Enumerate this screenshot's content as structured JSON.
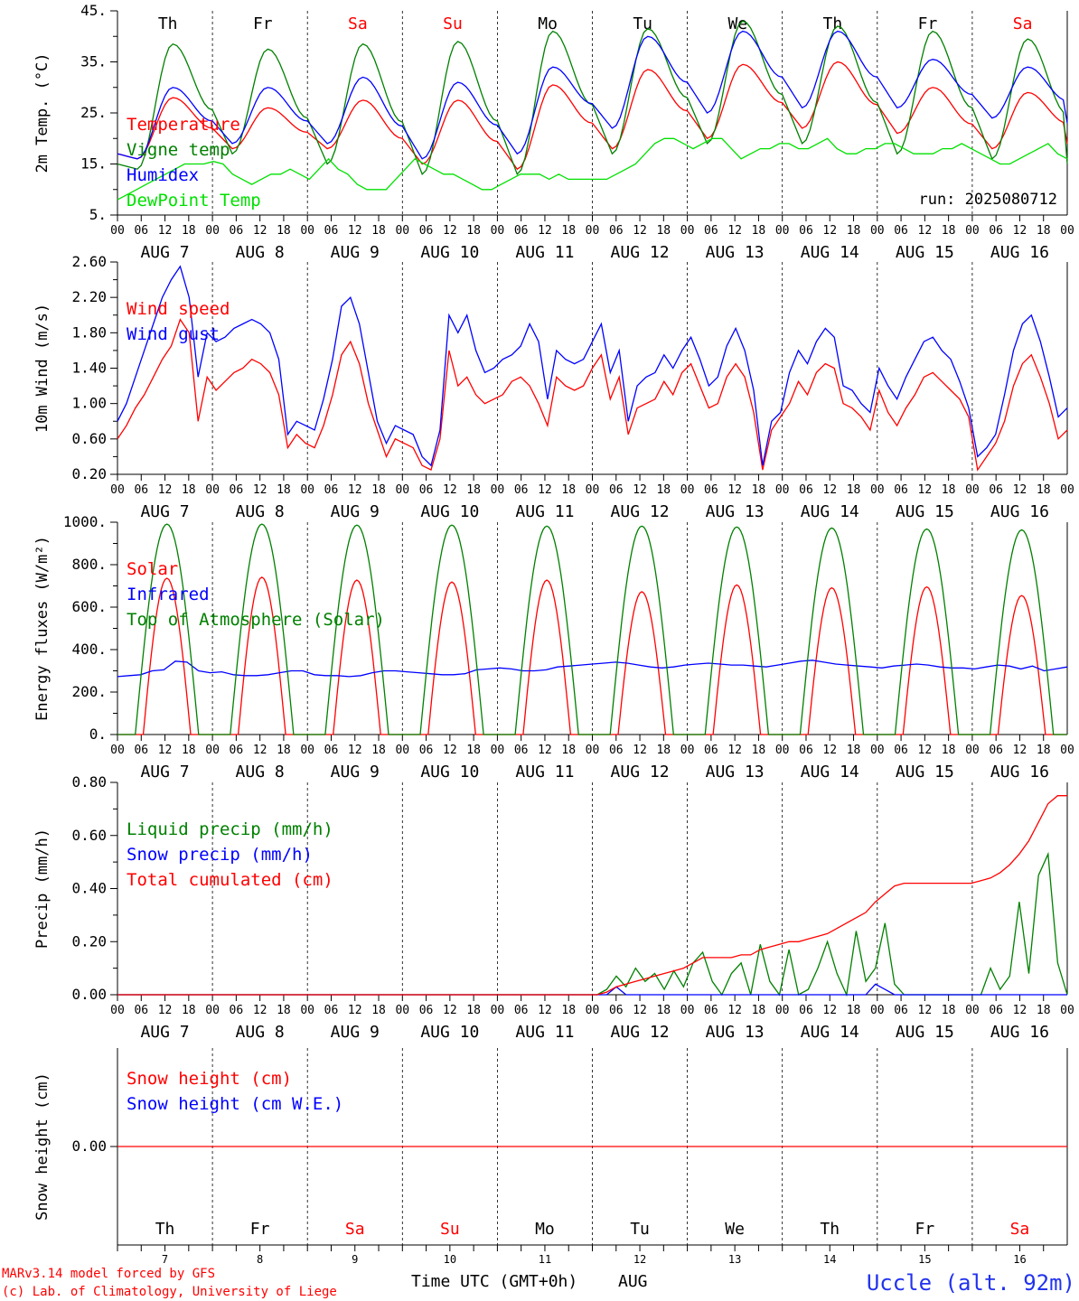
{
  "run_label": "run: 2025080712",
  "footer": {
    "model": "MARv3.14 model forced by GFS",
    "copyright": "(c) Lab. of Climatology, University of Liege",
    "time_axis": "Time UTC (GMT+0h)",
    "month": "AUG",
    "station": "Uccle (alt. 92m)"
  },
  "days": {
    "names": [
      "Th",
      "Fr",
      "Sa",
      "Su",
      "Mo",
      "Tu",
      "We",
      "Th",
      "Fr",
      "Sa"
    ],
    "weekend": [
      false,
      false,
      true,
      true,
      false,
      false,
      false,
      false,
      false,
      true
    ],
    "dates": [
      "AUG  7",
      "AUG  8",
      "AUG  9",
      "AUG 10",
      "AUG 11",
      "AUG 12",
      "AUG 13",
      "AUG 14",
      "AUG 15",
      "AUG 16"
    ],
    "numbers": [
      "7",
      "8",
      "9",
      "10",
      "11",
      "12",
      "13",
      "14",
      "15",
      "16"
    ],
    "hour_ticks": [
      "00",
      "06",
      "12",
      "18"
    ],
    "final_tick": "00"
  },
  "colors": {
    "red": "#ff0000",
    "blue": "#0000ff",
    "green": "#008000",
    "lime": "#00e000",
    "weekend": "#ff0000"
  },
  "chart_data": [
    {
      "type": "line",
      "ylabel": "2m Temp. (°C)",
      "ylim": [
        5,
        45
      ],
      "yticks": [
        "5.",
        "15.",
        "25.",
        "35.",
        "45."
      ],
      "legend": [
        "Temperature",
        "Vigne temp",
        "Humidex",
        "DewPoint Temp"
      ],
      "series": [
        {
          "name": "Temperature",
          "color": "#ff0000",
          "kind": "diurnal",
          "min": [
            16,
            18,
            18,
            15,
            14,
            18,
            20,
            22,
            21,
            18
          ],
          "max": [
            28,
            26,
            27.5,
            27.5,
            30.5,
            33.5,
            34.5,
            35,
            30,
            29
          ],
          "end": 19
        },
        {
          "name": "Vigne temp",
          "color": "#008000",
          "kind": "diurnal",
          "min": [
            14,
            17,
            15,
            13,
            13,
            17,
            19,
            19,
            17,
            16
          ],
          "max": [
            38.5,
            37.5,
            38.5,
            39,
            41,
            41.5,
            43,
            42,
            41,
            39.5
          ],
          "end": 15
        },
        {
          "name": "Humidex",
          "color": "#0000ff",
          "kind": "diurnal",
          "min": [
            16,
            19,
            19,
            16,
            17,
            22,
            25,
            26,
            26,
            24
          ],
          "max": [
            30,
            30,
            32,
            31,
            34,
            40,
            41,
            41,
            35.5,
            34
          ],
          "end": 23
        },
        {
          "name": "DewPoint Temp",
          "color": "#00e000",
          "kind": "series",
          "values": [
            8,
            9,
            10,
            11,
            12,
            13,
            14,
            15,
            15,
            15,
            15.5,
            15,
            13,
            12,
            11,
            12,
            13,
            13,
            14,
            13,
            12,
            14,
            16,
            14,
            13,
            11,
            10,
            10,
            10,
            12,
            14,
            16,
            15,
            14,
            13,
            13,
            12,
            11,
            10,
            10,
            11,
            12,
            13,
            13,
            13,
            12,
            13,
            12,
            12,
            12,
            12,
            12,
            13,
            14,
            15,
            17,
            19,
            20,
            20,
            19,
            18,
            19,
            20,
            20,
            18,
            16,
            17,
            18,
            18,
            19,
            19,
            18,
            18,
            19,
            20,
            18,
            17,
            17,
            18,
            18,
            19,
            19,
            18,
            17,
            17,
            17,
            18,
            18,
            19,
            18,
            17,
            16,
            15,
            15,
            16,
            17,
            18,
            19,
            17,
            16
          ]
        }
      ]
    },
    {
      "type": "line",
      "ylabel": "10m Wind (m/s)",
      "ylim": [
        0.2,
        2.6
      ],
      "yticks": [
        "0.20",
        "0.60",
        "1.00",
        "1.40",
        "1.80",
        "2.20",
        "2.60"
      ],
      "legend": [
        "Wind speed",
        "Wind gust"
      ],
      "series": [
        {
          "name": "Wind speed",
          "color": "#ff0000",
          "values": [
            0.6,
            0.75,
            0.95,
            1.1,
            1.3,
            1.5,
            1.65,
            1.95,
            1.8,
            0.8,
            1.3,
            1.15,
            1.25,
            1.35,
            1.4,
            1.5,
            1.45,
            1.35,
            1.1,
            0.5,
            0.65,
            0.55,
            0.5,
            0.75,
            1.1,
            1.55,
            1.7,
            1.45,
            1.0,
            0.7,
            0.4,
            0.6,
            0.55,
            0.5,
            0.3,
            0.25,
            0.6,
            1.6,
            1.2,
            1.3,
            1.1,
            1.0,
            1.05,
            1.1,
            1.25,
            1.3,
            1.2,
            1.0,
            0.75,
            1.3,
            1.2,
            1.15,
            1.2,
            1.4,
            1.55,
            1.05,
            1.3,
            0.65,
            0.95,
            1.0,
            1.05,
            1.25,
            1.1,
            1.35,
            1.45,
            1.2,
            0.95,
            1.0,
            1.3,
            1.45,
            1.3,
            0.9,
            0.25,
            0.7,
            0.85,
            1.0,
            1.25,
            1.1,
            1.35,
            1.45,
            1.4,
            1.0,
            0.95,
            0.85,
            0.7,
            1.15,
            0.9,
            0.75,
            0.95,
            1.1,
            1.3,
            1.35,
            1.25,
            1.15,
            1.05,
            0.85,
            0.25,
            0.4,
            0.55,
            0.8,
            1.2,
            1.45,
            1.55,
            1.3,
            1.0,
            0.6,
            0.7
          ]
        },
        {
          "name": "Wind gust",
          "color": "#0000ff",
          "values": [
            0.8,
            1.0,
            1.3,
            1.6,
            1.9,
            2.2,
            2.4,
            2.55,
            2.2,
            1.3,
            1.8,
            1.7,
            1.75,
            1.85,
            1.9,
            1.95,
            1.9,
            1.8,
            1.5,
            0.65,
            0.8,
            0.75,
            0.7,
            1.05,
            1.5,
            2.1,
            2.2,
            1.9,
            1.35,
            0.8,
            0.55,
            0.75,
            0.7,
            0.65,
            0.4,
            0.3,
            0.7,
            2.0,
            1.8,
            2.0,
            1.6,
            1.35,
            1.4,
            1.5,
            1.55,
            1.65,
            1.9,
            1.7,
            1.05,
            1.6,
            1.5,
            1.45,
            1.5,
            1.7,
            1.9,
            1.35,
            1.6,
            0.8,
            1.2,
            1.3,
            1.35,
            1.55,
            1.4,
            1.6,
            1.75,
            1.5,
            1.2,
            1.3,
            1.65,
            1.85,
            1.6,
            1.15,
            0.3,
            0.8,
            0.9,
            1.35,
            1.6,
            1.45,
            1.7,
            1.85,
            1.75,
            1.2,
            1.15,
            1.0,
            0.9,
            1.4,
            1.2,
            1.05,
            1.3,
            1.5,
            1.7,
            1.75,
            1.6,
            1.5,
            1.25,
            0.95,
            0.4,
            0.5,
            0.65,
            1.1,
            1.6,
            1.9,
            2.0,
            1.7,
            1.3,
            0.85,
            0.95
          ]
        }
      ]
    },
    {
      "type": "line",
      "ylabel": "Energy fluxes (W/m²)",
      "ylim": [
        0,
        1100
      ],
      "yticks": [
        "0.",
        "200.",
        "400.",
        "600.",
        "800.",
        "1000."
      ],
      "legend": [
        "Solar",
        "Infrared",
        "Top of Atmosphere (Solar)"
      ],
      "series": [
        {
          "name": "Solar",
          "color": "#ff0000",
          "kind": "solar",
          "peaks": [
            810,
            815,
            800,
            790,
            800,
            740,
            775,
            760,
            765,
            720
          ]
        },
        {
          "name": "Infrared",
          "color": "#0000ff",
          "values": [
            300,
            305,
            310,
            330,
            335,
            380,
            375,
            330,
            320,
            325,
            310,
            305,
            305,
            310,
            320,
            330,
            330,
            310,
            305,
            305,
            300,
            305,
            320,
            330,
            330,
            325,
            320,
            315,
            310,
            310,
            315,
            335,
            340,
            345,
            340,
            330,
            330,
            335,
            350,
            355,
            360,
            365,
            370,
            375,
            370,
            360,
            350,
            345,
            350,
            360,
            365,
            370,
            365,
            360,
            360,
            355,
            350,
            360,
            370,
            380,
            385,
            375,
            365,
            360,
            355,
            350,
            345,
            355,
            360,
            365,
            360,
            350,
            345,
            345,
            340,
            350,
            360,
            355,
            340,
            355,
            330,
            340,
            350
          ]
        },
        {
          "name": "Top of Atmosphere (Solar)",
          "color": "#008000",
          "kind": "toa",
          "peaks": [
            1090,
            1090,
            1085,
            1085,
            1080,
            1080,
            1075,
            1070,
            1065,
            1060
          ]
        }
      ]
    },
    {
      "type": "line",
      "ylabel": "Precip (mm/h)",
      "ylim": [
        0,
        0.8
      ],
      "yticks": [
        "0.00",
        "0.20",
        "0.40",
        "0.60",
        "0.80"
      ],
      "legend": [
        "Liquid precip (mm/h)",
        "Snow precip (mm/h)",
        "Total cumulated (cm)"
      ],
      "series": [
        {
          "name": "Liquid precip (mm/h)",
          "color": "#008000",
          "values": [
            0,
            0,
            0,
            0,
            0,
            0,
            0,
            0,
            0,
            0,
            0,
            0,
            0,
            0,
            0,
            0,
            0,
            0,
            0,
            0,
            0,
            0,
            0,
            0,
            0,
            0,
            0,
            0,
            0,
            0,
            0,
            0,
            0,
            0,
            0,
            0,
            0,
            0,
            0,
            0,
            0,
            0,
            0,
            0,
            0,
            0,
            0,
            0,
            0,
            0,
            0,
            0.02,
            0.07,
            0.03,
            0.1,
            0.05,
            0.08,
            0.02,
            0.09,
            0.03,
            0.12,
            0.16,
            0.05,
            0,
            0.08,
            0.12,
            0,
            0.19,
            0.05,
            0,
            0.17,
            0,
            0.02,
            0.1,
            0.2,
            0.08,
            0,
            0.24,
            0.05,
            0.1,
            0.27,
            0.04,
            0,
            0,
            0,
            0,
            0,
            0,
            0,
            0,
            0,
            0.1,
            0.02,
            0.07,
            0.35,
            0.08,
            0.45,
            0.53,
            0.12,
            0
          ]
        },
        {
          "name": "Snow precip (mm/h)",
          "color": "#0000ff",
          "values": [
            0,
            0,
            0,
            0,
            0,
            0,
            0,
            0,
            0,
            0,
            0,
            0,
            0,
            0,
            0,
            0,
            0,
            0,
            0,
            0,
            0,
            0,
            0,
            0,
            0,
            0,
            0,
            0,
            0,
            0,
            0,
            0,
            0,
            0,
            0,
            0,
            0,
            0,
            0,
            0,
            0,
            0,
            0,
            0,
            0,
            0,
            0,
            0,
            0,
            0,
            0,
            0,
            0.03,
            0,
            0,
            0,
            0,
            0,
            0,
            0,
            0,
            0,
            0,
            0,
            0,
            0,
            0,
            0,
            0,
            0,
            0,
            0,
            0,
            0,
            0,
            0,
            0,
            0,
            0,
            0.04,
            0.02,
            0,
            0,
            0,
            0,
            0,
            0,
            0,
            0,
            0,
            0,
            0,
            0,
            0,
            0,
            0,
            0,
            0,
            0,
            0
          ]
        },
        {
          "name": "Total cumulated (cm)",
          "color": "#ff0000",
          "values": [
            0,
            0,
            0,
            0,
            0,
            0,
            0,
            0,
            0,
            0,
            0,
            0,
            0,
            0,
            0,
            0,
            0,
            0,
            0,
            0,
            0,
            0,
            0,
            0,
            0,
            0,
            0,
            0,
            0,
            0,
            0,
            0,
            0,
            0,
            0,
            0,
            0,
            0,
            0,
            0,
            0,
            0,
            0,
            0,
            0,
            0,
            0,
            0,
            0,
            0,
            0,
            0.01,
            0.03,
            0.04,
            0.05,
            0.06,
            0.07,
            0.08,
            0.09,
            0.1,
            0.12,
            0.14,
            0.14,
            0.14,
            0.14,
            0.15,
            0.15,
            0.17,
            0.18,
            0.19,
            0.2,
            0.2,
            0.21,
            0.22,
            0.23,
            0.25,
            0.27,
            0.29,
            0.31,
            0.35,
            0.38,
            0.41,
            0.42,
            0.42,
            0.42,
            0.42,
            0.42,
            0.42,
            0.42,
            0.42,
            0.43,
            0.44,
            0.46,
            0.49,
            0.53,
            0.58,
            0.65,
            0.72,
            0.75,
            0.75
          ]
        }
      ]
    },
    {
      "type": "line",
      "ylabel": "Snow height (cm)",
      "ylim": [
        -1,
        1
      ],
      "yticks": [
        "0.00"
      ],
      "legend": [
        "Snow height (cm)",
        "Snow height (cm W.E.)"
      ],
      "series": [
        {
          "name": "Snow height (cm)",
          "color": "#ff0000",
          "values": [
            0,
            0
          ]
        }
      ]
    }
  ]
}
